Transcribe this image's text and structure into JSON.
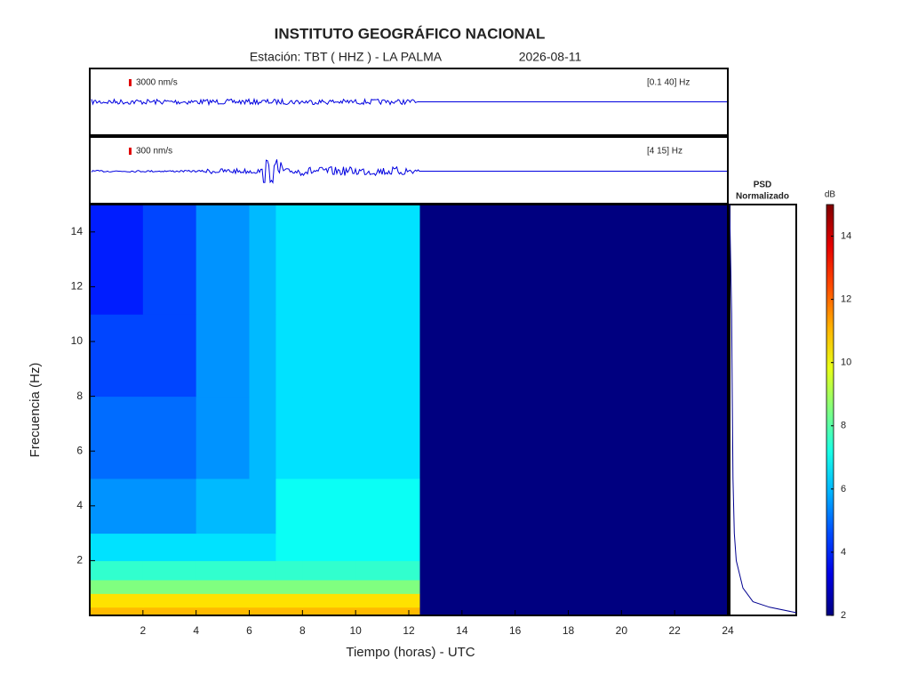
{
  "chart_data": {
    "type": "spectrogram",
    "title": "INSTITUTO GEOGRÁFICO NACIONAL",
    "subtitle": "Estación:  TBT ( HHZ ) - LA PALMA",
    "date": "2026-08-11",
    "traces": [
      {
        "scale": "3000 nm/s",
        "band": "[0.1 40] Hz"
      },
      {
        "scale": "300 nm/s",
        "band": "[4 15] Hz"
      }
    ],
    "data_end": 12.4,
    "xlabel": "Tiempo (horas) - UTC",
    "ylabel": "Frecuencia  (Hz)",
    "xlim": [
      0,
      24
    ],
    "xticks": [
      2,
      4,
      6,
      8,
      10,
      12,
      14,
      16,
      18,
      20,
      22,
      24
    ],
    "ylim": [
      0,
      15
    ],
    "yticks": [
      2,
      4,
      6,
      8,
      10,
      12,
      14
    ],
    "time_edges": [
      0,
      2,
      4,
      6,
      7,
      8,
      10,
      12.4
    ],
    "freq_edges": [
      0,
      0.3,
      0.8,
      1.3,
      2,
      3,
      5,
      8,
      11,
      15
    ],
    "db": [
      [
        11,
        11,
        11,
        11,
        11,
        11,
        11
      ],
      [
        10.5,
        10.5,
        10.5,
        10.5,
        10.5,
        10.5,
        10.5
      ],
      [
        8.5,
        8.5,
        8.5,
        8.5,
        8.5,
        8.5,
        8.5
      ],
      [
        7.5,
        7.5,
        7.5,
        7.5,
        7.5,
        7.5,
        7.5
      ],
      [
        6.5,
        6.5,
        6.5,
        6.5,
        7,
        7,
        7
      ],
      [
        5.5,
        5.5,
        6,
        6,
        7,
        7,
        7
      ],
      [
        5,
        5,
        5.5,
        6,
        6.5,
        6.5,
        6.5
      ],
      [
        4.5,
        4.5,
        5.5,
        6,
        6.5,
        6.5,
        6.5
      ],
      [
        4,
        4.5,
        5.5,
        6,
        6.5,
        6.5,
        6.5
      ]
    ],
    "psd_title": [
      "PSD",
      "Normalizado"
    ],
    "psd_freqs": [
      0.1,
      0.3,
      0.5,
      1,
      2,
      3,
      5,
      8,
      11,
      15
    ],
    "psd_values": [
      1,
      0.6,
      0.35,
      0.2,
      0.1,
      0.07,
      0.05,
      0.04,
      0.03,
      0
    ],
    "psd_xlim": [
      0,
      1
    ],
    "colorbar_label": "dB",
    "clim": [
      2,
      15
    ],
    "cticks": [
      2,
      4,
      6,
      8,
      10,
      12,
      14
    ]
  }
}
